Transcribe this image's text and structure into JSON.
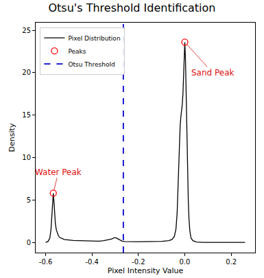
{
  "chart_data": {
    "type": "line",
    "title": "Otsu's Threshold Identification",
    "x_label": "Pixel Intensity Value",
    "y_label": "Density",
    "series": [
      {
        "name": "Pixel Distribution",
        "color": "#000000",
        "type": "line",
        "line_style": "solid",
        "x": [
          -0.6,
          -0.59,
          -0.582,
          -0.577,
          -0.573,
          -0.57,
          -0.567,
          -0.564,
          -0.561,
          -0.558,
          -0.554,
          -0.55,
          -0.545,
          -0.54,
          -0.53,
          -0.52,
          -0.5,
          -0.48,
          -0.45,
          -0.42,
          -0.4,
          -0.37,
          -0.35,
          -0.33,
          -0.315,
          -0.305,
          -0.298,
          -0.29,
          -0.28,
          -0.27,
          -0.26,
          -0.24,
          -0.2,
          -0.15,
          -0.1,
          -0.07,
          -0.055,
          -0.045,
          -0.038,
          -0.033,
          -0.029,
          -0.026,
          -0.023,
          -0.02,
          -0.017,
          -0.014,
          -0.011,
          -0.008,
          -0.005,
          -0.003,
          0.0,
          0.003,
          0.006,
          0.009,
          0.012,
          0.015,
          0.018,
          0.022,
          0.027,
          0.035,
          0.05,
          0.08,
          0.12,
          0.18,
          0.26
        ],
        "values": [
          0.0,
          0.1,
          0.5,
          1.5,
          3.2,
          4.8,
          5.8,
          4.8,
          3.4,
          2.2,
          1.5,
          1.1,
          0.8,
          0.6,
          0.45,
          0.35,
          0.28,
          0.22,
          0.2,
          0.17,
          0.15,
          0.15,
          0.2,
          0.28,
          0.4,
          0.55,
          0.55,
          0.45,
          0.3,
          0.15,
          0.1,
          0.08,
          0.08,
          0.1,
          0.12,
          0.2,
          0.35,
          0.7,
          1.6,
          3.5,
          6.5,
          9.5,
          12.5,
          13.8,
          14.8,
          15.5,
          16.2,
          17.5,
          20.0,
          22.0,
          23.6,
          21.5,
          17.0,
          12.0,
          8.0,
          5.0,
          2.8,
          1.3,
          0.5,
          0.2,
          0.05,
          0.0,
          0.0,
          0.0,
          0.0
        ]
      },
      {
        "name": "Peaks",
        "color": "#ff0000",
        "type": "scatter",
        "marker": "open-circle",
        "x": [
          -0.567,
          0.0
        ],
        "values": [
          5.8,
          23.6
        ]
      },
      {
        "name": "Otsu Threshold",
        "color": "#0000cc",
        "type": "vline",
        "line_style": "dash",
        "x": [
          -0.265,
          -0.265
        ]
      }
    ],
    "annotations": [
      {
        "text": "Water Peak",
        "x": -0.567,
        "y": 5.8,
        "text_x": -0.545,
        "text_y": 8.3
      },
      {
        "text": "Sand Peak",
        "x": 0.0,
        "y": 23.6,
        "text_x": 0.12,
        "text_y": 20.0
      }
    ],
    "annotation_color": "#dd1111",
    "xlim": [
      -0.643,
      0.303
    ],
    "xticks": [
      -0.6,
      -0.4,
      -0.2,
      {
        "value": 0,
        "label": "0.0"
      },
      0.2
    ],
    "ylim": [
      -1.2,
      25.9
    ],
    "yticks": [
      0,
      5,
      10,
      15,
      20,
      25
    ],
    "grid": false,
    "legend": "upper left"
  }
}
